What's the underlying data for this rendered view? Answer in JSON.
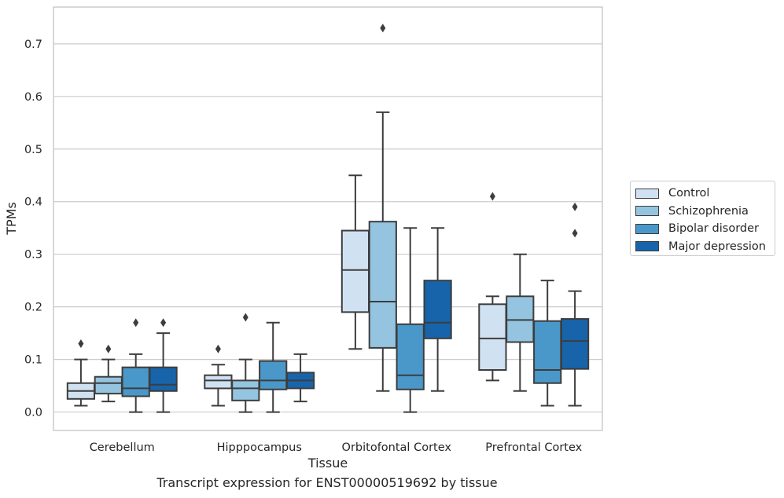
{
  "caption": "Transcript expression for ENST00000519692 by tissue",
  "legend": {
    "items": [
      {
        "label": "Control",
        "color": "#d0e1f2"
      },
      {
        "label": "Schizophrenia",
        "color": "#94c4df"
      },
      {
        "label": "Bipolar disorder",
        "color": "#4a98c9"
      },
      {
        "label": "Major depression",
        "color": "#1764ab"
      }
    ]
  },
  "chart_data": {
    "type": "box",
    "xlabel": "Tissue",
    "ylabel": "TPMs",
    "categories": [
      "Cerebellum",
      "Hipppocampus",
      "Orbitofontal Cortex",
      "Prefrontal Cortex"
    ],
    "ylim": [
      -0.035,
      0.77
    ],
    "yticks": [
      0.0,
      0.1,
      0.2,
      0.3,
      0.4,
      0.5,
      0.6,
      0.7
    ],
    "ytick_labels": [
      "0.0",
      "0.1",
      "0.2",
      "0.3",
      "0.4",
      "0.5",
      "0.6",
      "0.7"
    ],
    "grid": true,
    "legend_position": "outside right",
    "series": [
      {
        "name": "Control",
        "color": "#d0e1f2",
        "boxes": [
          {
            "whislo": 0.012,
            "q1": 0.025,
            "med": 0.04,
            "q3": 0.055,
            "whishi": 0.1,
            "fliers": [
              0.13
            ]
          },
          {
            "whislo": 0.012,
            "q1": 0.045,
            "med": 0.06,
            "q3": 0.07,
            "whishi": 0.09,
            "fliers": [
              0.12
            ]
          },
          {
            "whislo": 0.12,
            "q1": 0.19,
            "med": 0.27,
            "q3": 0.345,
            "whishi": 0.45,
            "fliers": []
          },
          {
            "whislo": 0.06,
            "q1": 0.08,
            "med": 0.14,
            "q3": 0.205,
            "whishi": 0.22,
            "fliers": [
              0.41
            ]
          }
        ]
      },
      {
        "name": "Schizophrenia",
        "color": "#94c4df",
        "boxes": [
          {
            "whislo": 0.02,
            "q1": 0.035,
            "med": 0.055,
            "q3": 0.067,
            "whishi": 0.1,
            "fliers": [
              0.12
            ]
          },
          {
            "whislo": 0.0,
            "q1": 0.022,
            "med": 0.045,
            "q3": 0.06,
            "whishi": 0.1,
            "fliers": [
              0.18
            ]
          },
          {
            "whislo": 0.04,
            "q1": 0.122,
            "med": 0.21,
            "q3": 0.362,
            "whishi": 0.57,
            "fliers": [
              0.73
            ]
          },
          {
            "whislo": 0.04,
            "q1": 0.133,
            "med": 0.175,
            "q3": 0.22,
            "whishi": 0.3,
            "fliers": []
          }
        ]
      },
      {
        "name": "Bipolar disorder",
        "color": "#4a98c9",
        "boxes": [
          {
            "whislo": 0.0,
            "q1": 0.03,
            "med": 0.045,
            "q3": 0.085,
            "whishi": 0.11,
            "fliers": [
              0.17
            ]
          },
          {
            "whislo": 0.0,
            "q1": 0.043,
            "med": 0.06,
            "q3": 0.097,
            "whishi": 0.17,
            "fliers": []
          },
          {
            "whislo": 0.0,
            "q1": 0.043,
            "med": 0.07,
            "q3": 0.167,
            "whishi": 0.35,
            "fliers": []
          },
          {
            "whislo": 0.012,
            "q1": 0.055,
            "med": 0.08,
            "q3": 0.173,
            "whishi": 0.25,
            "fliers": []
          }
        ]
      },
      {
        "name": "Major depression",
        "color": "#1764ab",
        "boxes": [
          {
            "whislo": 0.0,
            "q1": 0.04,
            "med": 0.052,
            "q3": 0.085,
            "whishi": 0.15,
            "fliers": [
              0.17
            ]
          },
          {
            "whislo": 0.02,
            "q1": 0.045,
            "med": 0.06,
            "q3": 0.075,
            "whishi": 0.11,
            "fliers": []
          },
          {
            "whislo": 0.04,
            "q1": 0.14,
            "med": 0.17,
            "q3": 0.25,
            "whishi": 0.35,
            "fliers": []
          },
          {
            "whislo": 0.012,
            "q1": 0.082,
            "med": 0.135,
            "q3": 0.177,
            "whishi": 0.23,
            "fliers": [
              0.34,
              0.39
            ]
          }
        ]
      }
    ]
  }
}
